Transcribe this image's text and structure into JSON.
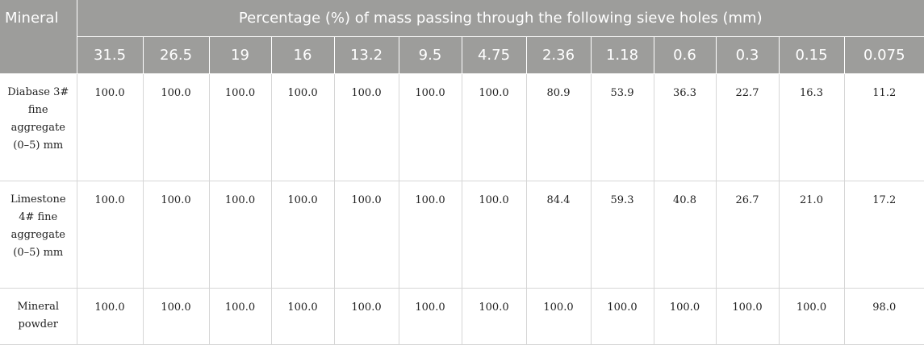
{
  "table": {
    "mineral_header": "Mineral",
    "group_header": "Percentage (%) of mass passing through the following sieve holes (mm)",
    "sieves": [
      "31.5",
      "26.5",
      "19",
      "16",
      "13.2",
      "9.5",
      "4.75",
      "2.36",
      "1.18",
      "0.6",
      "0.3",
      "0.15",
      "0.075"
    ],
    "rows": [
      {
        "mineral": "Diabase 3# fine aggregate (0–5) mm",
        "values": [
          "100.0",
          "100.0",
          "100.0",
          "100.0",
          "100.0",
          "100.0",
          "100.0",
          "80.9",
          "53.9",
          "36.3",
          "22.7",
          "16.3",
          "11.2"
        ]
      },
      {
        "mineral": "Limestone 4# fine aggregate (0–5) mm",
        "values": [
          "100.0",
          "100.0",
          "100.0",
          "100.0",
          "100.0",
          "100.0",
          "100.0",
          "84.4",
          "59.3",
          "40.8",
          "26.7",
          "21.0",
          "17.2"
        ]
      },
      {
        "mineral": "Mineral powder",
        "values": [
          "100.0",
          "100.0",
          "100.0",
          "100.0",
          "100.0",
          "100.0",
          "100.0",
          "100.0",
          "100.0",
          "100.0",
          "100.0",
          "100.0",
          "98.0"
        ]
      }
    ]
  }
}
